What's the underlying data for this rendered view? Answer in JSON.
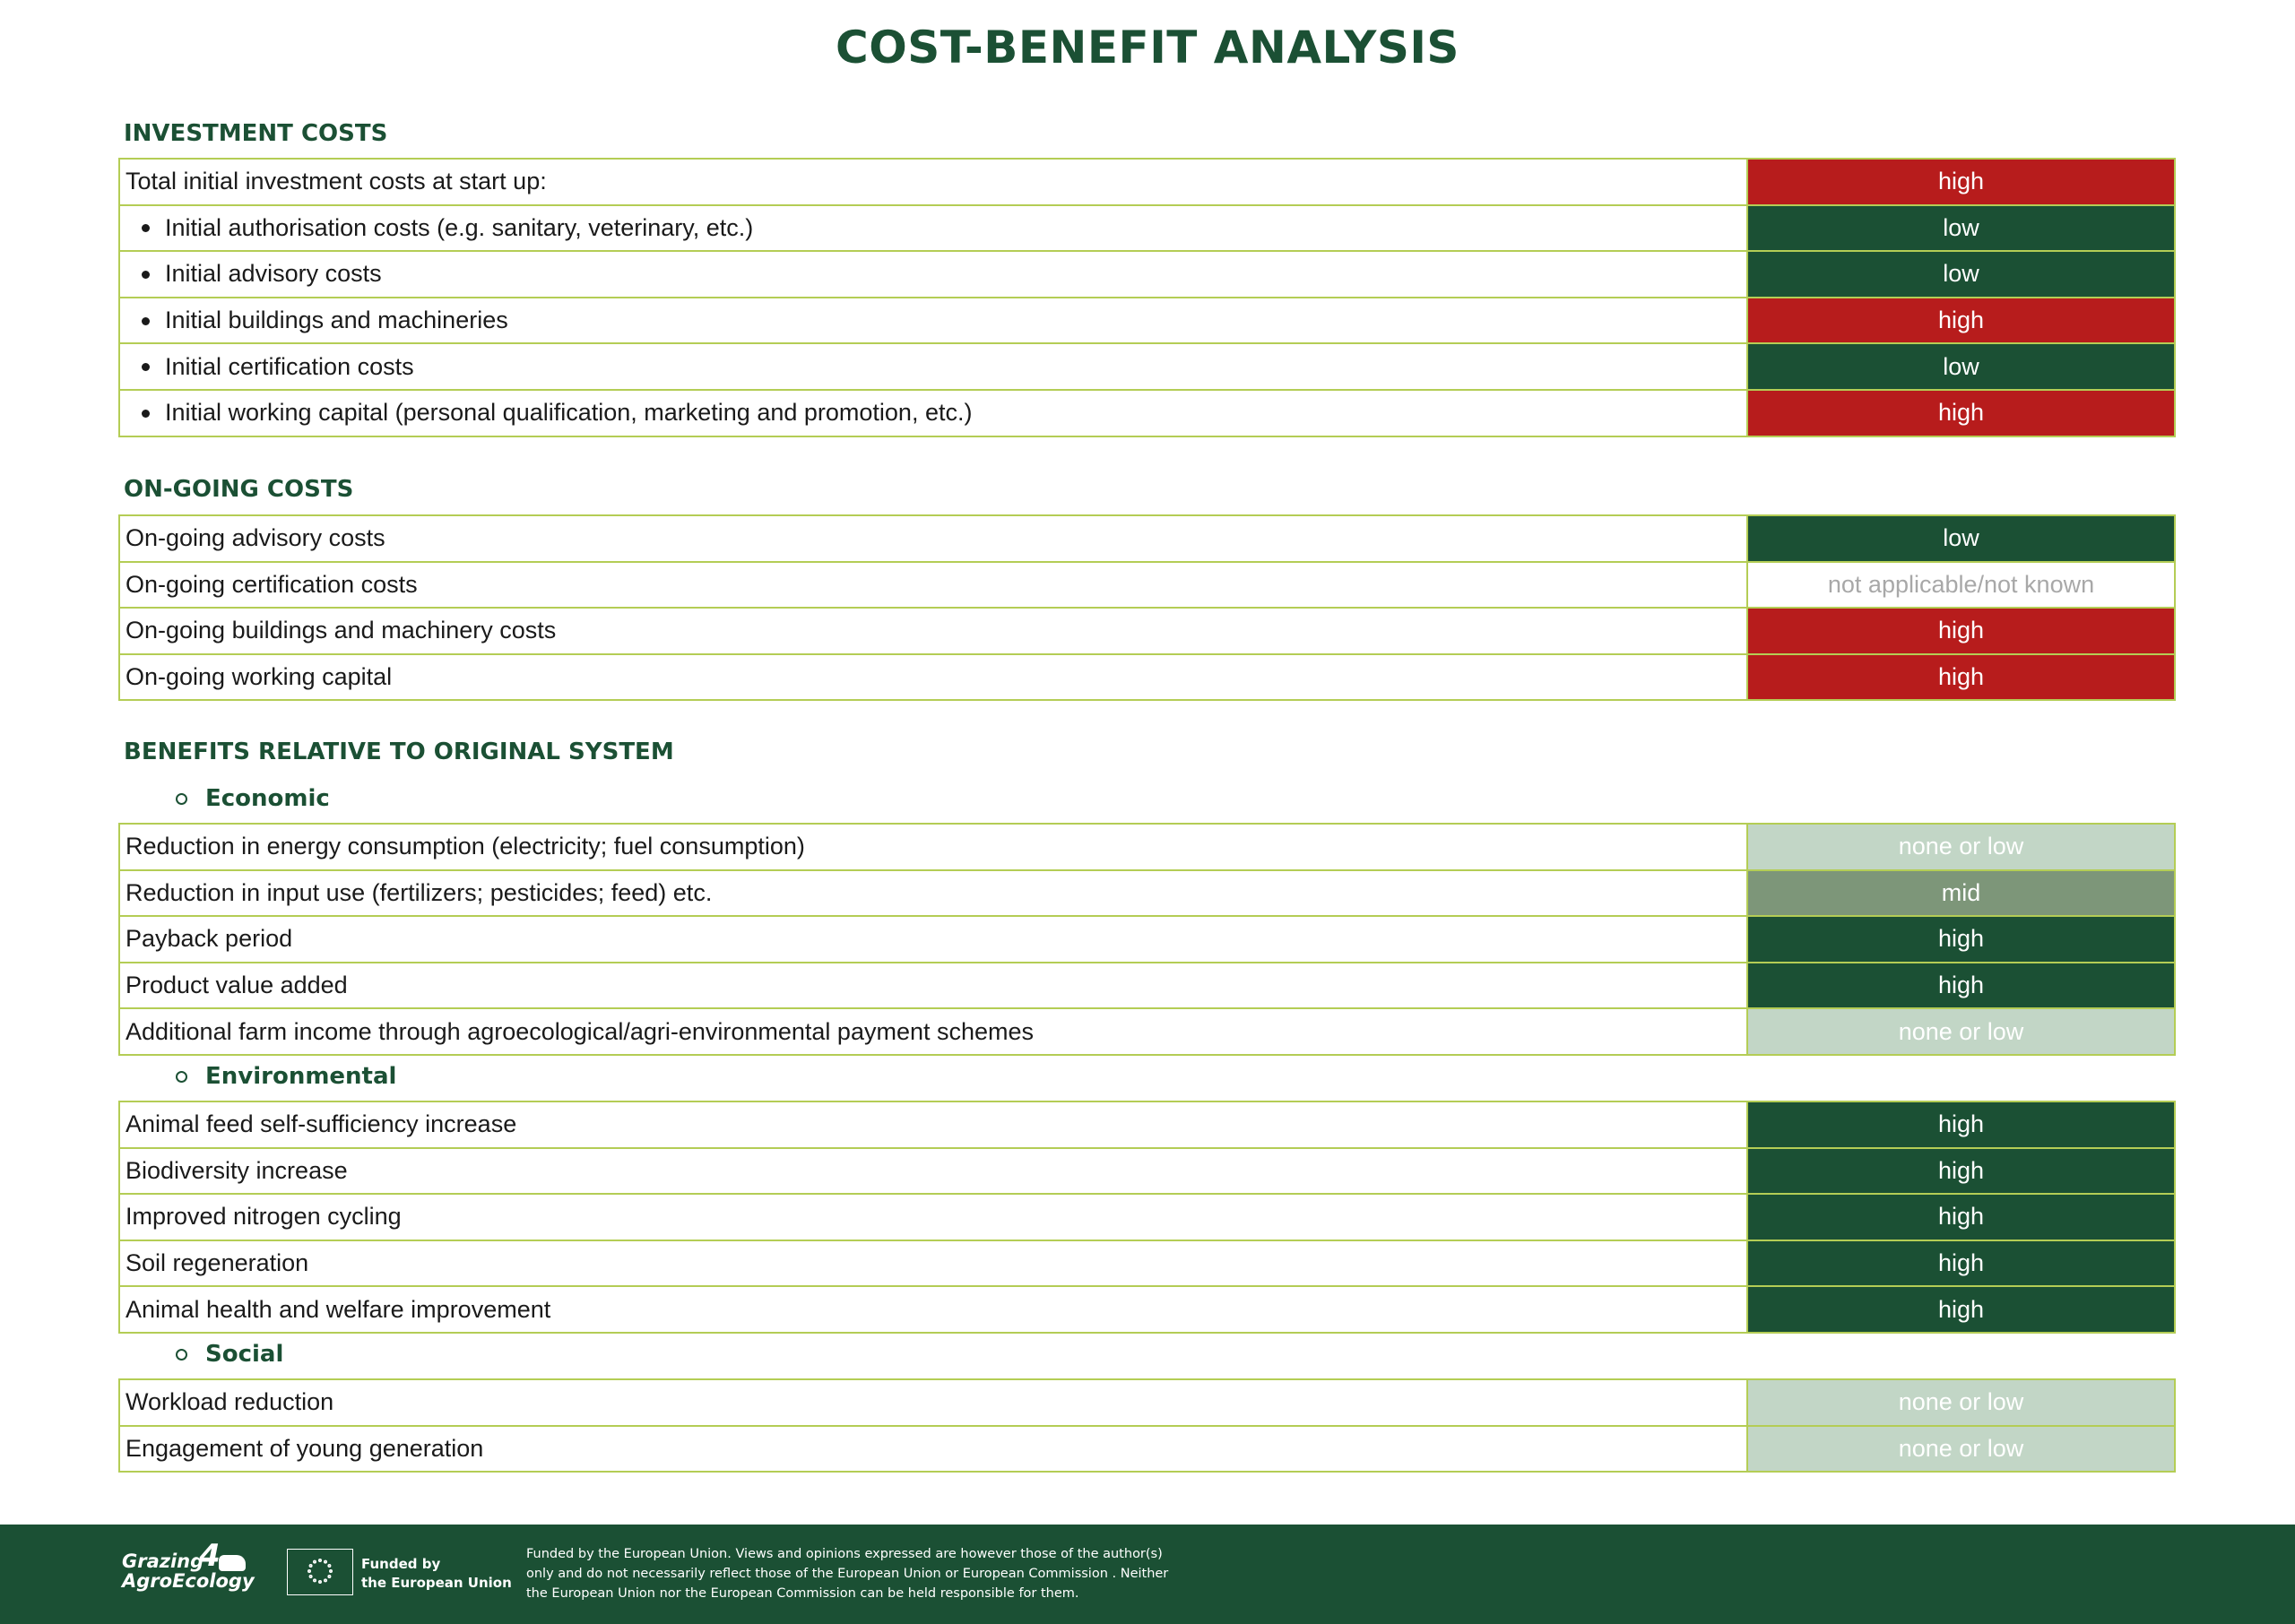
{
  "title": "COST-BENEFIT ANALYSIS",
  "investment": {
    "heading": "INVESTMENT COSTS",
    "rows": [
      {
        "label": "Total initial investment costs at start up:",
        "value": "high"
      },
      {
        "label": "Initial authorisation costs (e.g. sanitary, veterinary, etc.)",
        "value": "low"
      },
      {
        "label": "Initial advisory costs",
        "value": "low"
      },
      {
        "label": "Initial buildings and machineries",
        "value": "high"
      },
      {
        "label": "Initial certification costs",
        "value": "low"
      },
      {
        "label": "Initial working capital (personal qualification, marketing and promotion, etc.)",
        "value": "high"
      }
    ]
  },
  "ongoing": {
    "heading": "ON-GOING COSTS",
    "rows": [
      {
        "label": "On-going advisory costs",
        "value": "low"
      },
      {
        "label": "On-going certification costs",
        "value": "not applicable/not known"
      },
      {
        "label": "On-going buildings and machinery costs",
        "value": "high"
      },
      {
        "label": "On-going working capital",
        "value": "high"
      }
    ]
  },
  "benefits": {
    "heading": "BENEFITS RELATIVE TO ORIGINAL SYSTEM",
    "economic": {
      "heading": "Economic",
      "rows": [
        {
          "label": "Reduction in energy consumption (electricity; fuel consumption)",
          "value": "none or low"
        },
        {
          "label": "Reduction in input use (fertilizers; pesticides; feed) etc.",
          "value": "mid"
        },
        {
          "label": "Payback period",
          "value": "high"
        },
        {
          "label": "Product value added",
          "value": "high"
        },
        {
          "label": "Additional farm income through agroecological/agri-environmental payment schemes",
          "value": "none or low"
        }
      ]
    },
    "environmental": {
      "heading": "Environmental",
      "rows": [
        {
          "label": "Animal feed self-sufficiency increase",
          "value": "high"
        },
        {
          "label": "Biodiversity increase",
          "value": "high"
        },
        {
          "label": "Improved nitrogen cycling",
          "value": "high"
        },
        {
          "label": "Soil regeneration",
          "value": "high"
        },
        {
          "label": "Animal health and welfare improvement",
          "value": "high"
        }
      ]
    },
    "social": {
      "heading": "Social",
      "rows": [
        {
          "label": "Workload reduction",
          "value": "none or low"
        },
        {
          "label": "Engagement of young generation",
          "value": "none or low"
        }
      ]
    }
  },
  "colors": {
    "brand_green": "#1b5034",
    "cost_high": "#b71c1c",
    "benefit_mid": "#7d9679",
    "benefit_none_or_low": "#c2d6c6",
    "table_border": "#b4cd55"
  },
  "footer": {
    "logo_line1": "Grazing",
    "logo_line2": "AgroEcology",
    "logo_number": "4",
    "eu_label_line1": "Funded by",
    "eu_label_line2": "the European Union",
    "disclaimer_line1": "Funded by the European Union. Views and opinions expressed are however those of the author(s)",
    "disclaimer_line2": "only and do not necessarily reflect those of the European Union or European Commission . Neither",
    "disclaimer_line3": "the European Union nor the European Commission can be held responsible for them."
  }
}
